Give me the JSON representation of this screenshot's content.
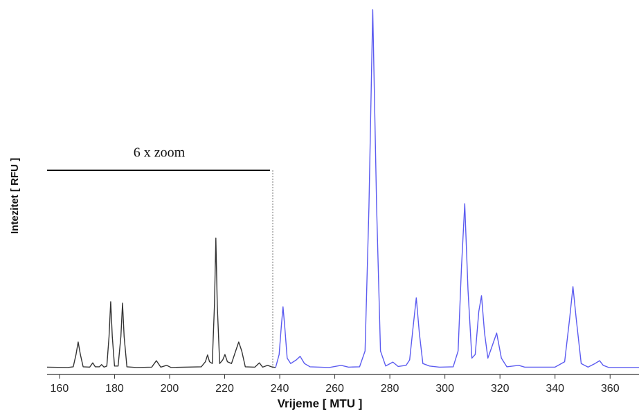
{
  "chart_data": {
    "type": "line",
    "x_label": "Vrijeme [ MTU ]",
    "y_label": "Intezitet [ RFU ]",
    "annotation": "6 x zoom",
    "xlim": [
      155.5,
      370.5
    ],
    "xticks": [
      160,
      180,
      200,
      220,
      240,
      260,
      280,
      300,
      320,
      340,
      360
    ],
    "ylim": [
      0,
      100
    ],
    "series": [
      {
        "color": "#333333",
        "x": [
          155.5,
          163,
          165,
          166,
          166.8,
          167.6,
          168.6,
          171,
          172.1,
          173,
          174.5,
          175.3,
          176.2,
          177.2,
          178,
          178.6,
          179.2,
          180,
          181.3,
          182.3,
          182.9,
          183.5,
          184.5,
          188,
          193.5,
          195.2,
          196.8,
          198.9,
          200.5,
          211.5,
          213,
          213.8,
          214.5,
          215.5,
          216.3,
          216.8,
          217.3,
          218.2,
          219.3,
          220.1,
          221,
          222.5,
          224,
          225.1,
          226.2,
          227.5,
          231,
          232.6,
          233.8,
          235.6,
          237,
          238.5
        ],
        "values": [
          0.5,
          0.4,
          0.6,
          4,
          7.5,
          4,
          0.6,
          0.5,
          1.7,
          0.6,
          0.6,
          1.2,
          0.5,
          0.8,
          9,
          18.7,
          9,
          0.8,
          0.8,
          9,
          18.3,
          9,
          0.6,
          0.4,
          0.5,
          2.3,
          0.5,
          1,
          0.4,
          0.6,
          2,
          3.9,
          2,
          1.5,
          18,
          36.4,
          18,
          1.5,
          2.5,
          4,
          2,
          1.5,
          5,
          7.5,
          5,
          0.6,
          0.5,
          1.7,
          0.5,
          1,
          0.6,
          0.4
        ]
      },
      {
        "color": "#5b5bf0",
        "x": [
          238.5,
          239.8,
          240.6,
          241.2,
          241.8,
          242.7,
          244,
          246,
          247.4,
          249,
          251,
          258,
          262.3,
          265,
          269,
          271,
          272.4,
          273.8,
          275.2,
          276.6,
          278.5,
          281.1,
          283,
          285.9,
          287.2,
          288.5,
          289.6,
          290.7,
          292,
          294.4,
          298,
          303,
          304.8,
          306,
          307.2,
          308.4,
          309.8,
          311,
          312.3,
          313.3,
          314.4,
          315.6,
          317,
          318.8,
          320.5,
          322.5,
          326.8,
          329,
          340,
          343.5,
          345.3,
          346.5,
          347.7,
          349.5,
          352,
          354.5,
          356.2,
          357.5,
          359.5,
          370.5
        ],
        "values": [
          0.4,
          4,
          12,
          17.3,
          12,
          3,
          1.5,
          2.5,
          3.5,
          1.5,
          0.6,
          0.4,
          1,
          0.5,
          0.6,
          5,
          45,
          100,
          45,
          5,
          0.8,
          1.9,
          0.7,
          1,
          2.5,
          12,
          19.8,
          10,
          1.5,
          0.8,
          0.5,
          0.6,
          5,
          28,
          46,
          22,
          3,
          4,
          16,
          20.4,
          10,
          3,
          6,
          10,
          3,
          0.6,
          1,
          0.5,
          0.5,
          2,
          14,
          22.9,
          14,
          1.5,
          0.5,
          1.5,
          2.3,
          1,
          0.4,
          0.4
        ]
      }
    ]
  }
}
